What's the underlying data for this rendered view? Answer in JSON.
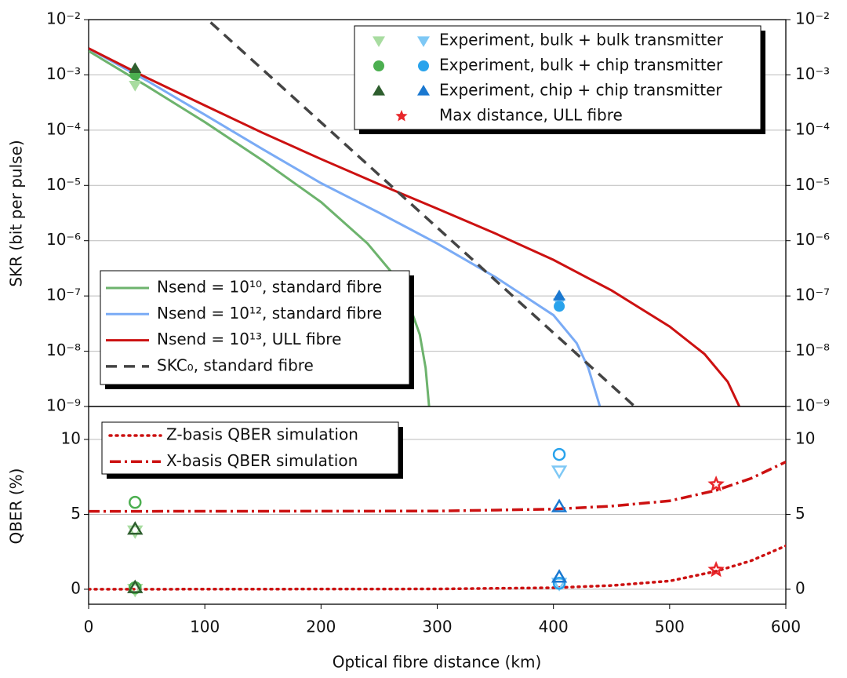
{
  "chart_data": [
    {
      "type": "line",
      "y_label": "SKR (bit per pulse)",
      "log_y": true,
      "xlim": [
        0,
        600
      ],
      "ylim": [
        1e-09,
        0.01
      ],
      "yticks": [
        {
          "value": 0.01,
          "label": "10⁻²"
        },
        {
          "value": 0.001,
          "label": "10⁻³"
        },
        {
          "value": 0.0001,
          "label": "10⁻⁴"
        },
        {
          "value": 1e-05,
          "label": "10⁻⁵"
        },
        {
          "value": 1e-06,
          "label": "10⁻⁶"
        },
        {
          "value": 1e-07,
          "label": "10⁻⁷"
        },
        {
          "value": 1e-08,
          "label": "10⁻⁸"
        },
        {
          "value": 1e-09,
          "label": "10⁻⁹"
        }
      ],
      "grid": true,
      "series": [
        {
          "name": "Nsend = 10¹⁰, standard fibre",
          "color": "#6db36d",
          "dash": "solid",
          "x": [
            0,
            50,
            100,
            150,
            200,
            240,
            260,
            275,
            285,
            290,
            293
          ],
          "values": [
            0.0027,
            0.00063,
            0.00014,
            2.8e-05,
            5e-06,
            8.9e-07,
            2.8e-07,
            7.9e-08,
            2e-08,
            5e-09,
            1e-09
          ]
        },
        {
          "name": "Nsend = 10¹², standard fibre",
          "color": "#7aabf5",
          "dash": "solid",
          "x": [
            0,
            50,
            100,
            150,
            200,
            250,
            300,
            350,
            400,
            420,
            430,
            440
          ],
          "values": [
            0.003,
            0.00079,
            0.00019,
            4.5e-05,
            1.1e-05,
            3.2e-06,
            8.9e-07,
            2.2e-07,
            4.5e-08,
            1.4e-08,
            5e-09,
            1e-09
          ]
        },
        {
          "name": "Nsend = 10¹³, ULL fibre",
          "color": "#cc1111",
          "dash": "solid",
          "x": [
            0,
            50,
            100,
            150,
            200,
            250,
            300,
            350,
            400,
            450,
            500,
            530,
            550,
            560
          ],
          "values": [
            0.00302,
            0.00089,
            0.00028,
            8.9e-05,
            3e-05,
            1.05e-05,
            3.8e-06,
            1.35e-06,
            4.5e-07,
            1.26e-07,
            2.8e-08,
            8.9e-09,
            2.8e-09,
            1e-09
          ]
        },
        {
          "name": "SKC₀, standard fibre",
          "color": "#444444",
          "dash": "dashed",
          "x": [
            105,
            470
          ],
          "values": [
            0.0089,
            1e-09
          ]
        }
      ],
      "experiments": [
        {
          "name": "Experiment, bulk + bulk transmitter",
          "marker": "triangle-down",
          "colors": [
            "#a8dca0",
            "#7ec8f5"
          ],
          "x": [
            40,
            405
          ],
          "values": [
            0.00065,
            7.5e-08
          ]
        },
        {
          "name": "Experiment, bulk + chip transmitter",
          "marker": "circle",
          "colors": [
            "#4caf50",
            "#29a3ec"
          ],
          "x": [
            40,
            405
          ],
          "values": [
            0.001,
            6.5e-08
          ]
        },
        {
          "name": "Experiment, chip + chip transmitter",
          "marker": "triangle-up",
          "colors": [
            "#2e5e2e",
            "#1a78d0"
          ],
          "x": [
            40,
            405
          ],
          "values": [
            0.0013,
            1e-07
          ]
        },
        {
          "name": "Max distance, ULL fibre",
          "marker": "star",
          "colors": [
            "#e8262a"
          ],
          "x": [
            540
          ],
          "values": [
            null
          ]
        }
      ]
    },
    {
      "type": "line",
      "y_label": "QBER (%)",
      "x_label": "Optical fibre distance (km)",
      "xlim": [
        0,
        600
      ],
      "ylim": [
        -1,
        12.2
      ],
      "xticks": [
        0,
        100,
        200,
        300,
        400,
        500,
        600
      ],
      "yticks": [
        0,
        5,
        10
      ],
      "grid": true,
      "series": [
        {
          "name": "Z-basis QBER simulation",
          "color": "#cc1111",
          "dash": "dotted",
          "x": [
            0,
            300,
            400,
            450,
            500,
            540,
            570,
            600
          ],
          "values": [
            0,
            0.02,
            0.1,
            0.25,
            0.55,
            1.2,
            1.9,
            2.9
          ]
        },
        {
          "name": "X-basis QBER simulation",
          "color": "#cc1111",
          "dash": "dashdot",
          "x": [
            0,
            300,
            400,
            450,
            500,
            540,
            570,
            600
          ],
          "values": [
            5.2,
            5.22,
            5.35,
            5.55,
            5.9,
            6.6,
            7.4,
            8.5
          ]
        }
      ],
      "experiments": [
        {
          "marker": "triangle-down",
          "colors": [
            "#a8dca0",
            "#7ec8f5"
          ],
          "x": [
            40,
            405
          ],
          "z_basis": [
            0,
            0.4
          ],
          "x_basis": [
            3.9,
            7.9
          ]
        },
        {
          "marker": "circle",
          "colors": [
            "#4caf50",
            "#29a3ec"
          ],
          "x": [
            40,
            405
          ],
          "z_basis": [
            0.1,
            0.4
          ],
          "x_basis": [
            5.8,
            9.0
          ]
        },
        {
          "marker": "triangle-up",
          "colors": [
            "#2e5e2e",
            "#1a78d0"
          ],
          "x": [
            40,
            405
          ],
          "z_basis": [
            0.1,
            0.8
          ],
          "x_basis": [
            4.0,
            5.5
          ]
        },
        {
          "marker": "star",
          "colors": [
            "#e8262a"
          ],
          "x": [
            540
          ],
          "z_basis": [
            1.3
          ],
          "x_basis": [
            7.0
          ]
        }
      ]
    }
  ]
}
